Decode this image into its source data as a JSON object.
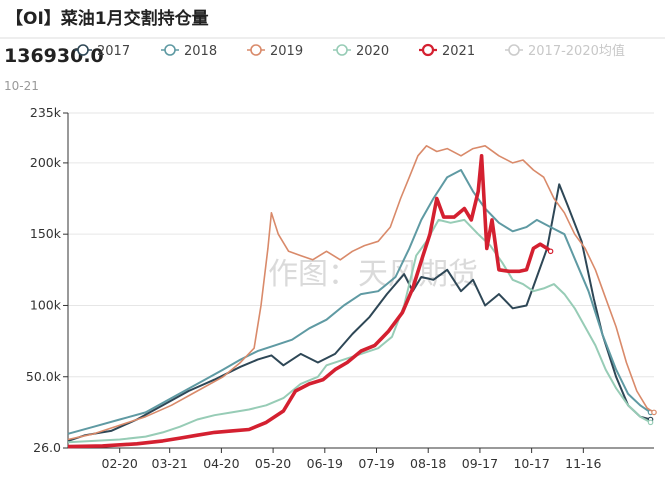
{
  "header": {
    "title": "【OI】菜油1月交割持仓量",
    "readout_value": "136930.0",
    "readout_date": "10-21"
  },
  "watermark": "作图：天风期货",
  "colors": {
    "2017": "#2e4756",
    "2018": "#5f9aa3",
    "2019": "#d98a6a",
    "2020": "#97ccb6",
    "2021": "#d42030",
    "avg": "#cccccc",
    "axis": "#333333",
    "grid": "#e6e6e6"
  },
  "chart_data": {
    "type": "line",
    "title": "【OI】菜油1月交割持仓量",
    "ylim": [
      26,
      235000
    ],
    "yticks": [
      26,
      50000,
      100000,
      150000,
      200000,
      235000
    ],
    "ytick_labels": [
      "26.0",
      "50.0k",
      "100k",
      "150k",
      "200k",
      "235k"
    ],
    "x_range": [
      0,
      340
    ],
    "x_ticks": [
      {
        "label": "02-20",
        "x": 30
      },
      {
        "label": "03-21",
        "x": 59
      },
      {
        "label": "04-20",
        "x": 89
      },
      {
        "label": "05-20",
        "x": 119
      },
      {
        "label": "06-19",
        "x": 149
      },
      {
        "label": "07-19",
        "x": 179
      },
      {
        "label": "08-18",
        "x": 209
      },
      {
        "label": "09-17",
        "x": 239
      },
      {
        "label": "10-17",
        "x": 269
      },
      {
        "label": "11-16",
        "x": 299
      }
    ],
    "legend_placement": "top",
    "series": [
      {
        "name": "2017",
        "key": "2017",
        "width": 2,
        "points": [
          [
            0,
            5000
          ],
          [
            10,
            9000
          ],
          [
            25,
            12000
          ],
          [
            40,
            20000
          ],
          [
            55,
            30000
          ],
          [
            70,
            40000
          ],
          [
            85,
            48000
          ],
          [
            100,
            57000
          ],
          [
            110,
            62000
          ],
          [
            118,
            65000
          ],
          [
            125,
            58000
          ],
          [
            135,
            66000
          ],
          [
            145,
            60000
          ],
          [
            155,
            66000
          ],
          [
            165,
            80000
          ],
          [
            175,
            92000
          ],
          [
            185,
            108000
          ],
          [
            195,
            122000
          ],
          [
            200,
            110000
          ],
          [
            205,
            120000
          ],
          [
            212,
            118000
          ],
          [
            220,
            125000
          ],
          [
            228,
            110000
          ],
          [
            235,
            118000
          ],
          [
            242,
            100000
          ],
          [
            250,
            108000
          ],
          [
            258,
            98000
          ],
          [
            266,
            100000
          ],
          [
            272,
            120000
          ],
          [
            278,
            140000
          ],
          [
            285,
            185000
          ],
          [
            290,
            170000
          ],
          [
            298,
            145000
          ],
          [
            305,
            105000
          ],
          [
            310,
            80000
          ],
          [
            318,
            50000
          ],
          [
            325,
            30000
          ],
          [
            332,
            22000
          ],
          [
            338,
            20000
          ]
        ]
      },
      {
        "name": "2018",
        "key": "2018",
        "width": 2,
        "points": [
          [
            0,
            10000
          ],
          [
            15,
            15000
          ],
          [
            30,
            20000
          ],
          [
            45,
            25000
          ],
          [
            60,
            35000
          ],
          [
            75,
            45000
          ],
          [
            90,
            55000
          ],
          [
            100,
            62000
          ],
          [
            110,
            68000
          ],
          [
            120,
            72000
          ],
          [
            130,
            76000
          ],
          [
            140,
            84000
          ],
          [
            150,
            90000
          ],
          [
            160,
            100000
          ],
          [
            170,
            108000
          ],
          [
            180,
            110000
          ],
          [
            190,
            120000
          ],
          [
            198,
            140000
          ],
          [
            205,
            160000
          ],
          [
            212,
            175000
          ],
          [
            220,
            190000
          ],
          [
            228,
            195000
          ],
          [
            235,
            180000
          ],
          [
            242,
            168000
          ],
          [
            250,
            158000
          ],
          [
            258,
            152000
          ],
          [
            266,
            155000
          ],
          [
            272,
            160000
          ],
          [
            280,
            155000
          ],
          [
            288,
            150000
          ],
          [
            295,
            130000
          ],
          [
            302,
            110000
          ],
          [
            310,
            80000
          ],
          [
            318,
            55000
          ],
          [
            325,
            38000
          ],
          [
            332,
            30000
          ],
          [
            338,
            25000
          ]
        ]
      },
      {
        "name": "2019",
        "key": "2019",
        "width": 1.6,
        "points": [
          [
            0,
            6000
          ],
          [
            15,
            10000
          ],
          [
            30,
            16000
          ],
          [
            45,
            22000
          ],
          [
            60,
            30000
          ],
          [
            75,
            40000
          ],
          [
            90,
            50000
          ],
          [
            100,
            60000
          ],
          [
            108,
            70000
          ],
          [
            112,
            100000
          ],
          [
            116,
            140000
          ],
          [
            118,
            165000
          ],
          [
            122,
            150000
          ],
          [
            128,
            138000
          ],
          [
            135,
            135000
          ],
          [
            142,
            132000
          ],
          [
            150,
            138000
          ],
          [
            158,
            132000
          ],
          [
            165,
            138000
          ],
          [
            172,
            142000
          ],
          [
            180,
            145000
          ],
          [
            187,
            155000
          ],
          [
            193,
            175000
          ],
          [
            198,
            190000
          ],
          [
            203,
            205000
          ],
          [
            208,
            212000
          ],
          [
            214,
            208000
          ],
          [
            220,
            210000
          ],
          [
            228,
            205000
          ],
          [
            235,
            210000
          ],
          [
            242,
            212000
          ],
          [
            250,
            205000
          ],
          [
            258,
            200000
          ],
          [
            264,
            202000
          ],
          [
            270,
            195000
          ],
          [
            276,
            190000
          ],
          [
            282,
            175000
          ],
          [
            288,
            165000
          ],
          [
            294,
            150000
          ],
          [
            300,
            140000
          ],
          [
            306,
            125000
          ],
          [
            312,
            105000
          ],
          [
            318,
            85000
          ],
          [
            324,
            60000
          ],
          [
            330,
            40000
          ],
          [
            336,
            28000
          ],
          [
            340,
            25000
          ]
        ]
      },
      {
        "name": "2020",
        "key": "2020",
        "width": 2,
        "points": [
          [
            0,
            4000
          ],
          [
            15,
            5000
          ],
          [
            30,
            6000
          ],
          [
            45,
            8000
          ],
          [
            55,
            11000
          ],
          [
            65,
            15000
          ],
          [
            75,
            20000
          ],
          [
            85,
            23000
          ],
          [
            95,
            25000
          ],
          [
            105,
            27000
          ],
          [
            115,
            30000
          ],
          [
            125,
            35000
          ],
          [
            135,
            45000
          ],
          [
            145,
            50000
          ],
          [
            150,
            58000
          ],
          [
            160,
            62000
          ],
          [
            170,
            66000
          ],
          [
            180,
            70000
          ],
          [
            188,
            78000
          ],
          [
            195,
            100000
          ],
          [
            202,
            135000
          ],
          [
            208,
            145000
          ],
          [
            215,
            160000
          ],
          [
            222,
            158000
          ],
          [
            230,
            160000
          ],
          [
            238,
            150000
          ],
          [
            245,
            142000
          ],
          [
            252,
            130000
          ],
          [
            258,
            118000
          ],
          [
            264,
            115000
          ],
          [
            270,
            110000
          ],
          [
            276,
            112000
          ],
          [
            282,
            115000
          ],
          [
            288,
            108000
          ],
          [
            294,
            98000
          ],
          [
            300,
            85000
          ],
          [
            306,
            72000
          ],
          [
            312,
            55000
          ],
          [
            318,
            42000
          ],
          [
            325,
            30000
          ],
          [
            332,
            22000
          ],
          [
            338,
            18000
          ]
        ]
      },
      {
        "name": "2021",
        "key": "2021",
        "width": 3.6,
        "points": [
          [
            0,
            1000
          ],
          [
            20,
            1500
          ],
          [
            40,
            3000
          ],
          [
            55,
            5000
          ],
          [
            65,
            7000
          ],
          [
            75,
            9000
          ],
          [
            85,
            11000
          ],
          [
            95,
            12000
          ],
          [
            105,
            13000
          ],
          [
            115,
            18000
          ],
          [
            125,
            26000
          ],
          [
            132,
            40000
          ],
          [
            140,
            45000
          ],
          [
            148,
            48000
          ],
          [
            155,
            55000
          ],
          [
            162,
            60000
          ],
          [
            170,
            68000
          ],
          [
            178,
            72000
          ],
          [
            186,
            82000
          ],
          [
            194,
            95000
          ],
          [
            200,
            112000
          ],
          [
            206,
            135000
          ],
          [
            210,
            150000
          ],
          [
            214,
            175000
          ],
          [
            218,
            162000
          ],
          [
            224,
            162000
          ],
          [
            230,
            168000
          ],
          [
            234,
            160000
          ],
          [
            238,
            180000
          ],
          [
            240,
            205000
          ],
          [
            243,
            140000
          ],
          [
            246,
            160000
          ],
          [
            250,
            125000
          ],
          [
            256,
            124000
          ],
          [
            262,
            124000
          ],
          [
            266,
            125000
          ],
          [
            270,
            140000
          ],
          [
            274,
            143000
          ],
          [
            278,
            140000
          ],
          [
            280,
            138000
          ]
        ]
      },
      {
        "name": "2017-2020均值",
        "key": "avg",
        "width": 0,
        "dim": true,
        "points": []
      }
    ]
  }
}
